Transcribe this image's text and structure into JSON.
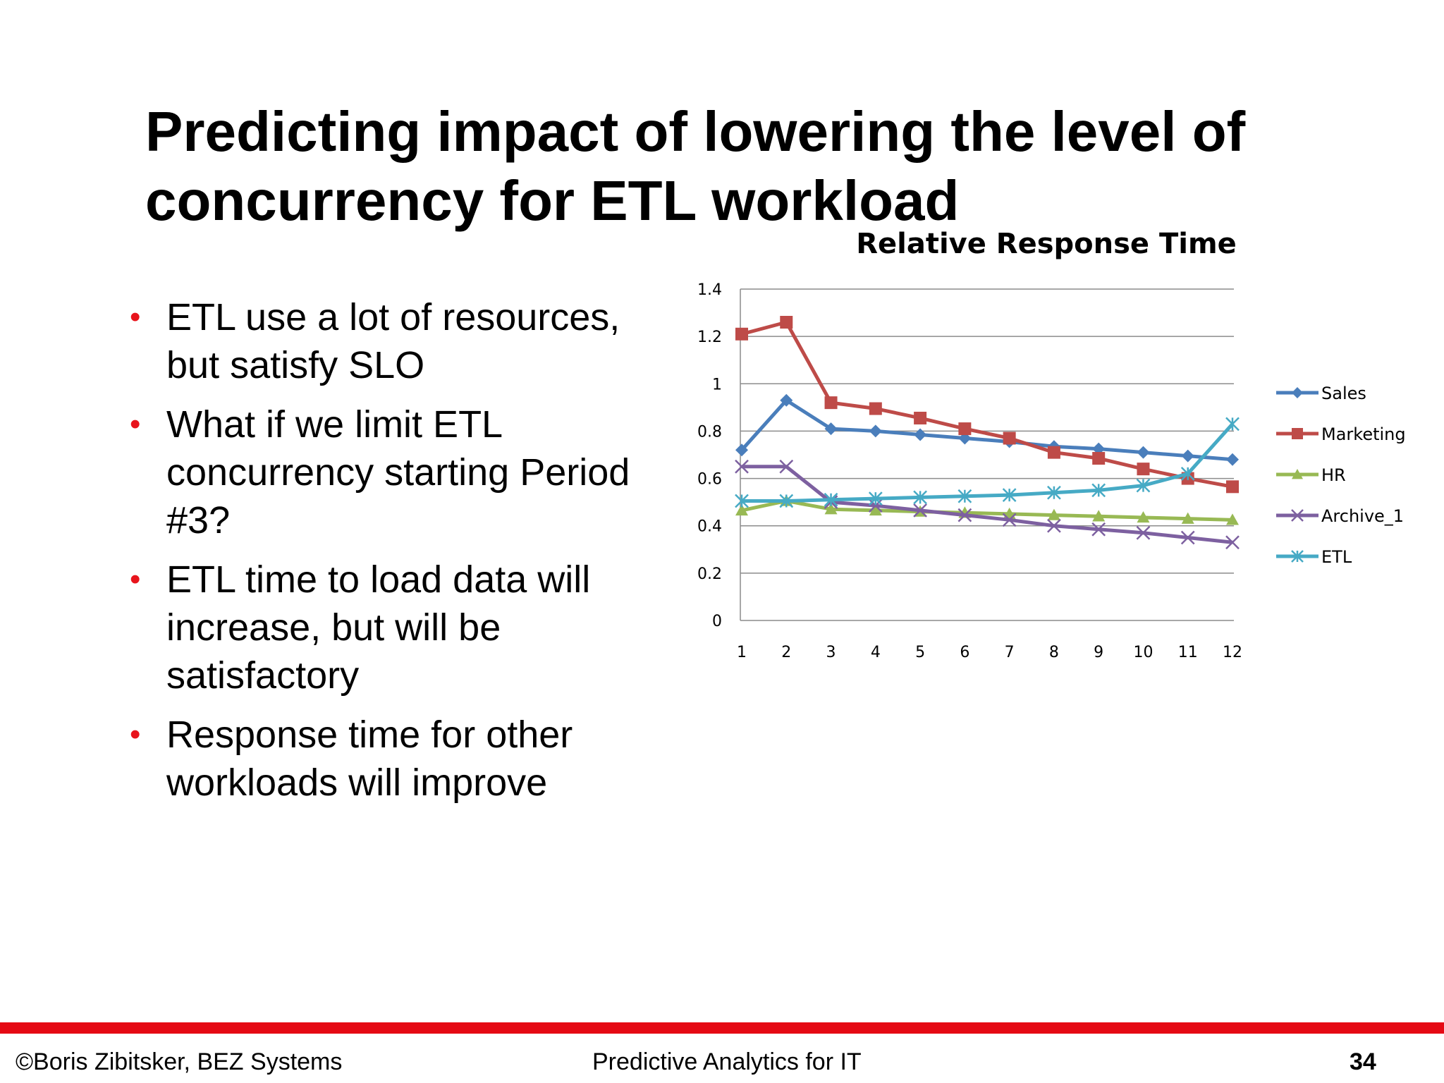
{
  "slide": {
    "title_lines": [
      "Predicting impact of lowering the level of",
      "concurrency for ETL workload"
    ],
    "bullets": [
      {
        "lines": [
          "ETL use a lot of resources,",
          "but satisfy SLO"
        ]
      },
      {
        "lines": [
          "What if we limit ETL",
          "concurrency starting Period",
          "#3?"
        ]
      },
      {
        "lines": [
          "ETL time to load data will",
          "increase, but will be",
          "satisfactory"
        ]
      },
      {
        "lines": [
          "Response time for other",
          "workloads will improve"
        ]
      }
    ],
    "bullet_glyph": "•",
    "bullet_color": "#e8141c"
  },
  "footer": {
    "left": "©Boris Zibitsker, BEZ Systems",
    "center": "Predictive Analytics for IT",
    "page_number": "34",
    "bar_color": "#e50914"
  },
  "chart_data": {
    "type": "line",
    "title": "Relative Response Time",
    "x": [
      1,
      2,
      3,
      4,
      5,
      6,
      7,
      8,
      9,
      10,
      11,
      12
    ],
    "ylim": [
      0,
      1.4
    ],
    "yticks": [
      "0",
      "0.2",
      "0.4",
      "0.6",
      "0.8",
      "1",
      "1.2",
      "1.4"
    ],
    "grid": true,
    "legend_position": "right",
    "series": [
      {
        "name": "Sales",
        "color": "#4a7ebb",
        "marker": "diamond",
        "values": [
          0.72,
          0.93,
          0.81,
          0.8,
          0.785,
          0.77,
          0.755,
          0.735,
          0.725,
          0.71,
          0.695,
          0.68
        ]
      },
      {
        "name": "Marketing",
        "color": "#be4b48",
        "marker": "square",
        "values": [
          1.21,
          1.26,
          0.92,
          0.895,
          0.855,
          0.81,
          0.77,
          0.71,
          0.685,
          0.64,
          0.6,
          0.565
        ]
      },
      {
        "name": "HR",
        "color": "#98b954",
        "marker": "triangle",
        "values": [
          0.465,
          0.505,
          0.47,
          0.465,
          0.46,
          0.455,
          0.45,
          0.445,
          0.44,
          0.435,
          0.43,
          0.425
        ]
      },
      {
        "name": "Archive_1",
        "color": "#7d60a0",
        "marker": "x",
        "values": [
          0.65,
          0.65,
          0.5,
          0.485,
          0.465,
          0.445,
          0.425,
          0.4,
          0.385,
          0.37,
          0.35,
          0.33
        ]
      },
      {
        "name": "ETL",
        "color": "#46aac5",
        "marker": "star",
        "values": [
          0.505,
          0.505,
          0.51,
          0.515,
          0.52,
          0.525,
          0.53,
          0.54,
          0.55,
          0.57,
          0.62,
          0.83
        ]
      }
    ]
  }
}
